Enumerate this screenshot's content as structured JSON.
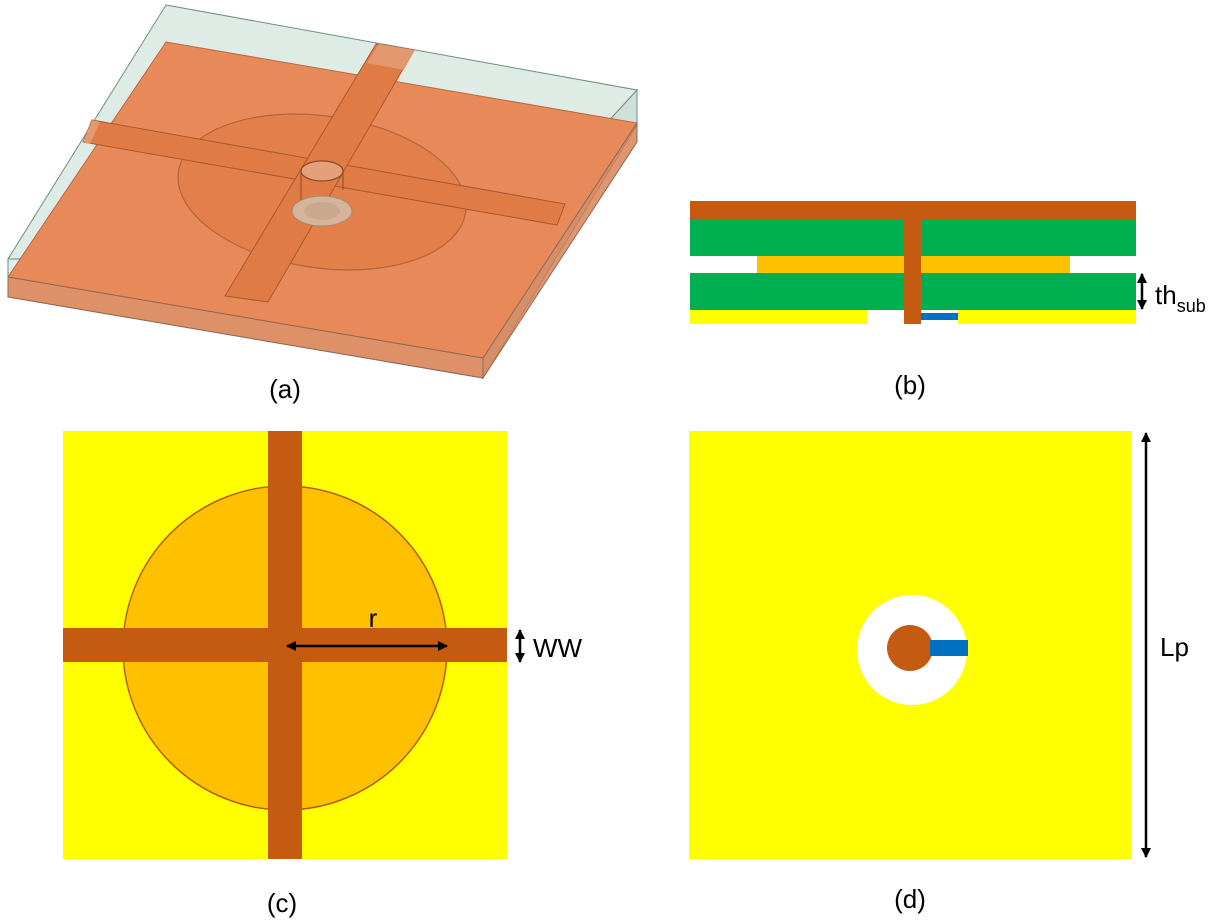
{
  "panels": {
    "a": {
      "caption": "(a)"
    },
    "b": {
      "caption": "(b)",
      "thickness_label": "th",
      "thickness_sub": "sub"
    },
    "c": {
      "caption": "(c)",
      "radius_label": "r",
      "width_label": "WW"
    },
    "d": {
      "caption": "(d)",
      "length_label": "Lp"
    }
  },
  "colors": {
    "copper": "#c55a11",
    "substrate_green": "#00b050",
    "patch_orange": "#ffc000",
    "ground_yellow": "#ffff00",
    "feed_blue": "#0070c0",
    "iso_copper": "#e8895a",
    "iso_glass": "#c9e0d6"
  }
}
